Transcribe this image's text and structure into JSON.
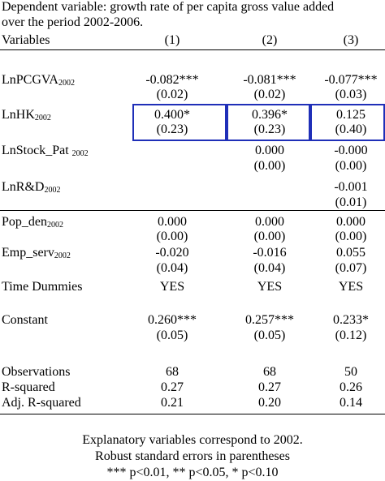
{
  "header": {
    "line1": "Dependent variable: growth rate of per capita gross value added",
    "line2": "over the period 2002-2006."
  },
  "columns": {
    "label": "Variables",
    "c1": "(1)",
    "c2": "(2)",
    "c3": "(3)"
  },
  "rows": [
    {
      "name": "LnPCGVA",
      "sub": "2002",
      "c1": "-0.082***",
      "c2": "-0.081***",
      "c3": "-0.077***",
      "se1": "(0.02)",
      "se2": "(0.02)",
      "se3": "(0.03)"
    },
    {
      "name": "LnHK",
      "sub": "2002",
      "c1": "0.400*",
      "c2": "0.396*",
      "c3": "0.125",
      "se1": "(0.23)",
      "se2": "(0.23)",
      "se3": "(0.40)"
    },
    {
      "name": "LnStock_Pat ",
      "sub": "2002",
      "c1": "",
      "c2": "0.000",
      "c3": "-0.000",
      "se1": "",
      "se2": "(0.00)",
      "se3": "(0.00)"
    },
    {
      "name": "LnR&D",
      "sub": "2002",
      "c1": "",
      "c2": "",
      "c3": "-0.001",
      "se1": "",
      "se2": "",
      "se3": "(0.01)"
    },
    {
      "name": "Pop_den",
      "sub": "2002",
      "c1": "0.000",
      "c2": "0.000",
      "c3": "0.000",
      "se1": "(0.00)",
      "se2": "(0.00)",
      "se3": "(0.00)"
    },
    {
      "name": "Emp_serv",
      "sub": "2002",
      "c1": "-0.020",
      "c2": "-0.016",
      "c3": "0.055",
      "se1": "(0.04)",
      "se2": "(0.04)",
      "se3": "(0.07)"
    }
  ],
  "time_dummies": {
    "name": "Time Dummies",
    "c1": "YES",
    "c2": "YES",
    "c3": "YES"
  },
  "constant": {
    "name": "Constant",
    "c1": "0.260***",
    "c2": "0.257***",
    "c3": "0.233*",
    "se1": "(0.05)",
    "se2": "(0.05)",
    "se3": "(0.12)"
  },
  "stats": [
    {
      "name": "Observations",
      "c1": "68",
      "c2": "68",
      "c3": "50"
    },
    {
      "name": "R-squared",
      "c1": "0.27",
      "c2": "0.27",
      "c3": "0.26"
    },
    {
      "name": "Adj. R-squared",
      "c1": "0.21",
      "c2": "0.20",
      "c3": "0.14"
    }
  ],
  "footnotes": {
    "line1": "Explanatory variables correspond to 2002.",
    "line2": "Robust standard errors in parentheses",
    "line3": "*** p<0.01, ** p<0.05, * p<0.10"
  },
  "colors": {
    "highlight_box": "#1f2fb8"
  }
}
